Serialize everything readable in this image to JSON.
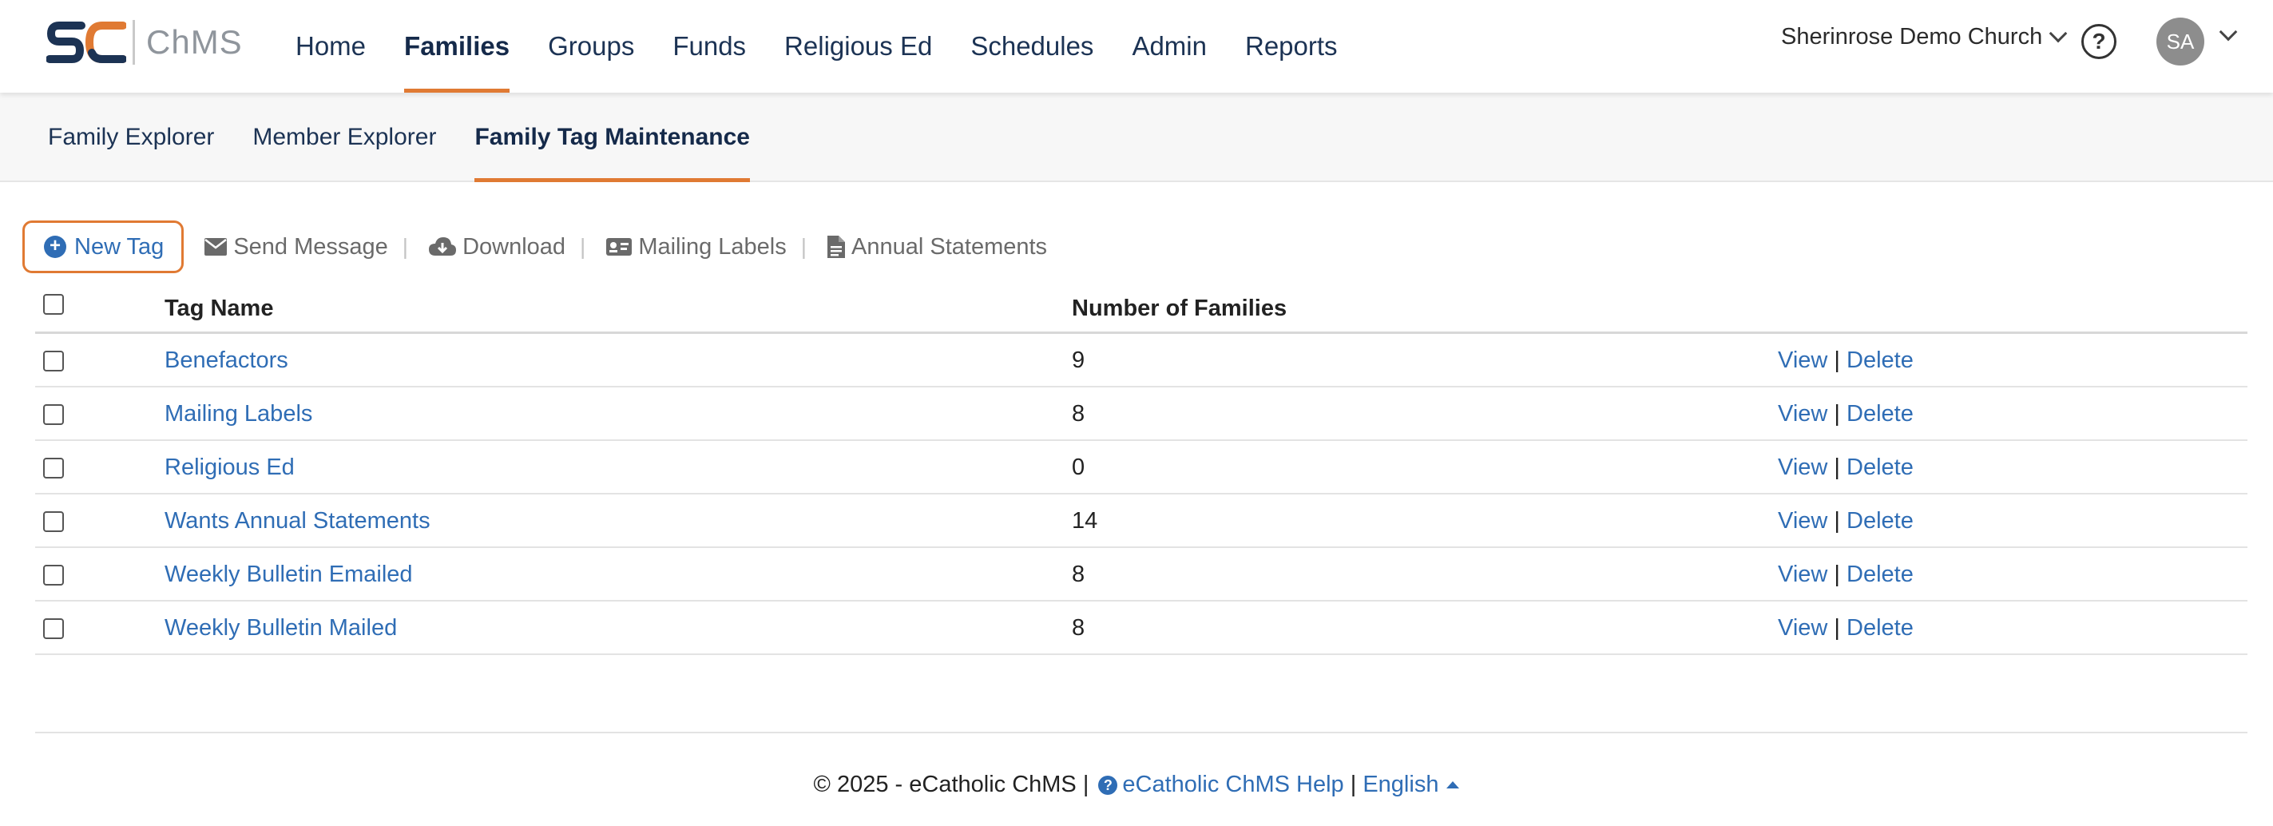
{
  "brand": {
    "logo_text": "ChMS",
    "primary_color": "#1c3354",
    "accent_color": "#e07a33",
    "link_color": "#2f6db5"
  },
  "topnav": {
    "items": [
      {
        "label": "Home"
      },
      {
        "label": "Families"
      },
      {
        "label": "Groups"
      },
      {
        "label": "Funds"
      },
      {
        "label": "Religious Ed"
      },
      {
        "label": "Schedules"
      },
      {
        "label": "Admin"
      },
      {
        "label": "Reports"
      }
    ],
    "active": "Families",
    "church_name": "Sherinrose Demo Church",
    "help_symbol": "?",
    "avatar_initials": "SA"
  },
  "subnav": {
    "items": [
      {
        "label": "Family Explorer"
      },
      {
        "label": "Member Explorer"
      },
      {
        "label": "Family Tag Maintenance"
      }
    ],
    "active": "Family Tag Maintenance"
  },
  "toolbar": {
    "new_tag": "New Tag",
    "send_message": "Send Message",
    "download": "Download",
    "mailing_labels": "Mailing Labels",
    "annual_statements": "Annual Statements",
    "separator": "|"
  },
  "table": {
    "headers": {
      "name": "Tag Name",
      "count": "Number of Families"
    },
    "rows": [
      {
        "name": "Benefactors",
        "count": "9"
      },
      {
        "name": "Mailing Labels",
        "count": "8"
      },
      {
        "name": "Religious Ed",
        "count": "0"
      },
      {
        "name": "Wants Annual Statements",
        "count": "14"
      },
      {
        "name": "Weekly Bulletin Emailed",
        "count": "8"
      },
      {
        "name": "Weekly Bulletin Mailed",
        "count": "8"
      }
    ],
    "action_view": "View",
    "action_sep": "|",
    "action_delete": "Delete"
  },
  "footer": {
    "copyright": "© 2025 - eCatholic ChMS |",
    "help_link": "eCatholic ChMS Help",
    "sep": "|",
    "language": "English"
  }
}
